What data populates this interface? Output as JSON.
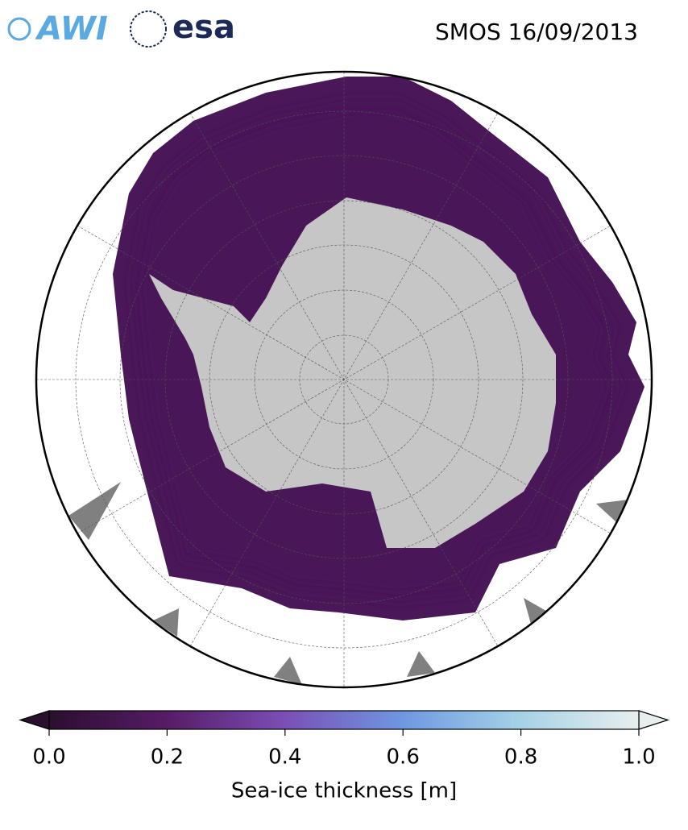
{
  "header": {
    "logos": [
      "AWI",
      "esa"
    ],
    "title": "SMOS 16/09/2013"
  },
  "colorbar": {
    "label": "Sea-ice thickness [m]",
    "lim": [
      0,
      1
    ],
    "ticks": [
      {
        "value": 0,
        "label": "0.0"
      },
      0.2,
      0.4,
      0.6,
      0.8,
      {
        "value": 1,
        "label": "1.0"
      }
    ]
  }
}
